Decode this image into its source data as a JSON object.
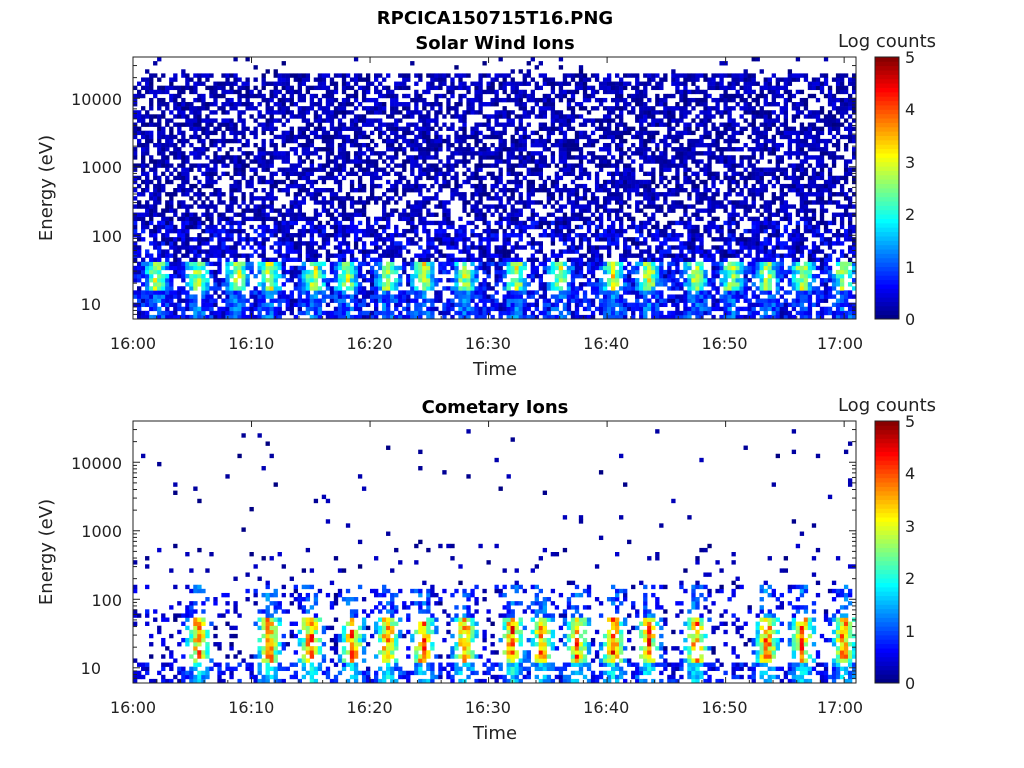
{
  "figure_title": "RPCICA150715T16.PNG",
  "chart_data": [
    {
      "type": "heatmap",
      "title": "Solar Wind Ions",
      "xlabel": "Time",
      "ylabel": "Energy (eV)",
      "y_scale": "log",
      "xlim": [
        "16:00",
        "17:01"
      ],
      "ylim": [
        6,
        40000
      ],
      "x_ticks": [
        "16:00",
        "16:10",
        "16:20",
        "16:30",
        "16:40",
        "16:50",
        "17:00"
      ],
      "y_ticks": [
        "10",
        "100",
        "1000",
        "10000"
      ],
      "colorbar": {
        "label": "Log counts",
        "range": [
          0,
          5
        ],
        "ticks": [
          "0",
          "1",
          "2",
          "3",
          "4",
          "5"
        ],
        "colormap": "jet"
      },
      "peak_minutes": [
        2,
        5.5,
        8.8,
        11.5,
        15.3,
        18,
        21.5,
        24.5,
        28,
        32.3,
        36,
        40.5,
        43.5,
        47.5,
        50.5,
        53.5,
        56.5,
        60
      ],
      "peak_log_counts": 2.6
    },
    {
      "type": "heatmap",
      "title": "Cometary Ions",
      "xlabel": "Time",
      "ylabel": "Energy (eV)",
      "y_scale": "log",
      "xlim": [
        "16:00",
        "17:01"
      ],
      "ylim": [
        6,
        40000
      ],
      "x_ticks": [
        "16:00",
        "16:10",
        "16:20",
        "16:30",
        "16:40",
        "16:50",
        "17:00"
      ],
      "y_ticks": [
        "10",
        "100",
        "1000",
        "10000"
      ],
      "colorbar": {
        "label": "Log counts",
        "range": [
          0,
          5
        ],
        "ticks": [
          "0",
          "1",
          "2",
          "3",
          "4",
          "5"
        ],
        "colormap": "jet"
      },
      "peak_minutes": [
        5.5,
        11.5,
        15,
        18.5,
        21.5,
        24.5,
        28,
        32,
        34.5,
        37.5,
        40.5,
        43.5,
        47.5,
        53.5,
        56.5,
        60
      ],
      "peak_log_counts": 3.8
    }
  ]
}
